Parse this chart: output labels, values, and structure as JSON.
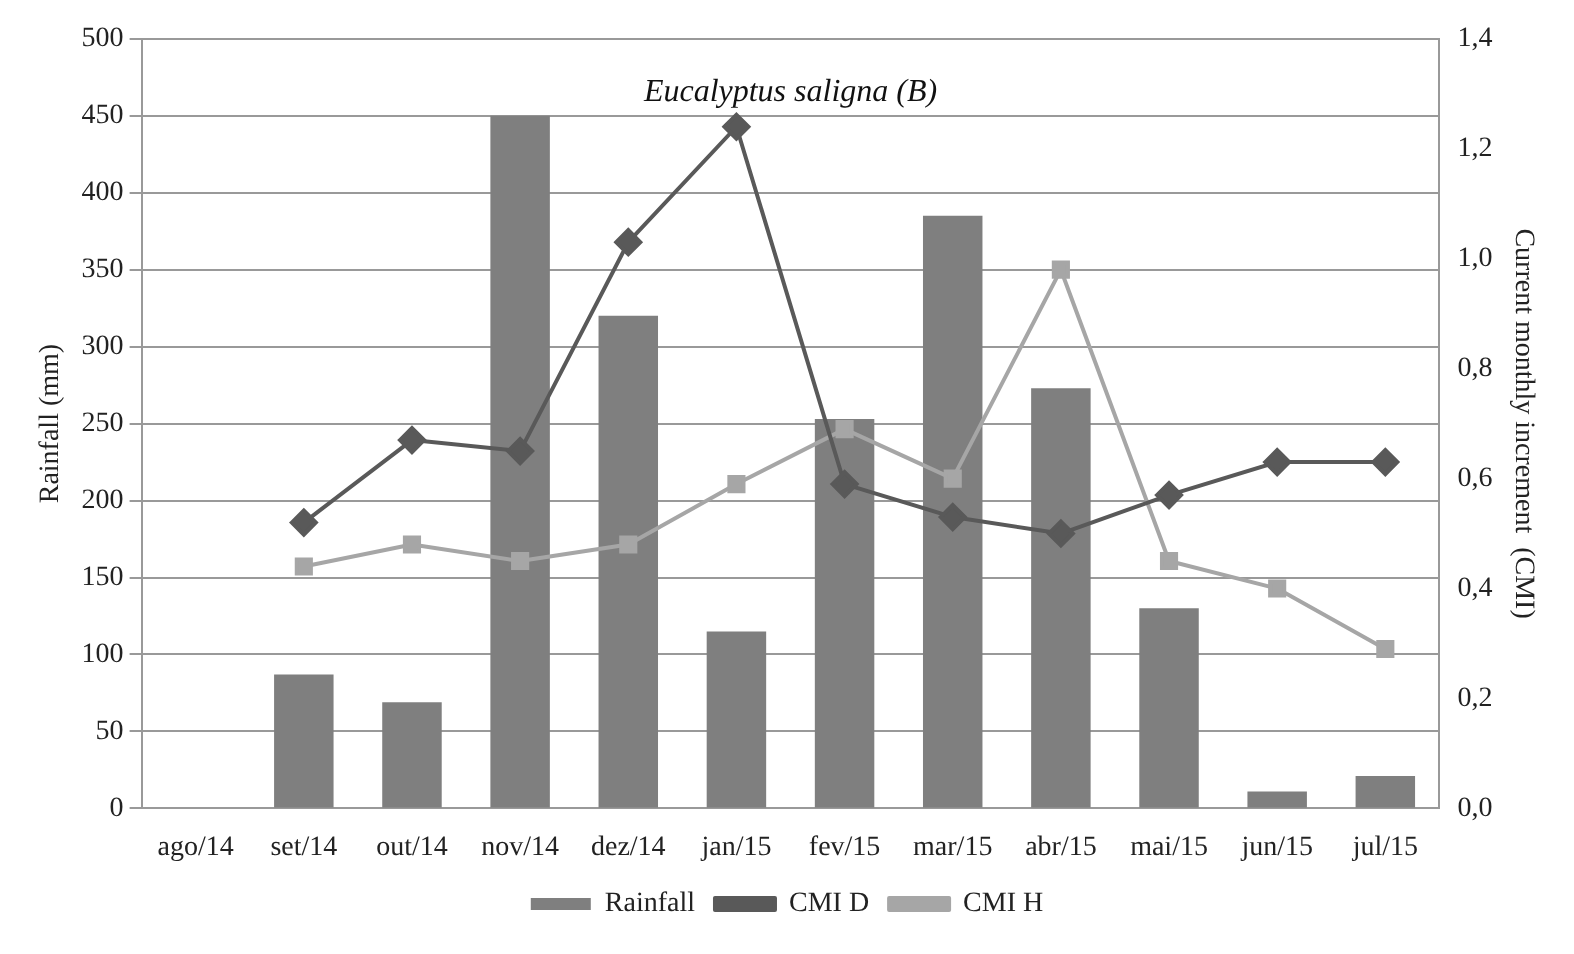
{
  "chart_data": {
    "type": "bar",
    "title": "Eucalyptus saligna (B)",
    "ylabel": "Rainfall (mm)",
    "y2label": "Current monthly increment  (CMI)",
    "categories": [
      "ago/14",
      "set/14",
      "out/14",
      "nov/14",
      "dez/14",
      "jan/15",
      "fev/15",
      "mar/15",
      "abr/15",
      "mai/15",
      "jun/15",
      "jul/15"
    ],
    "series": [
      {
        "name": "Rainfall",
        "color": "#7f7f7f",
        "values": [
          null,
          87,
          69,
          450,
          320,
          115,
          253,
          385,
          273,
          130,
          11,
          21
        ]
      },
      {
        "name": "CMI D",
        "type": "line",
        "axis": "y2",
        "marker": "diamond",
        "color": "#595959",
        "values": [
          null,
          0.52,
          0.67,
          0.65,
          1.03,
          1.24,
          0.59,
          0.53,
          0.5,
          0.57,
          0.63,
          0.63
        ]
      },
      {
        "name": "CMI H",
        "type": "line",
        "axis": "y2",
        "marker": "square",
        "color": "#a6a6a6",
        "values": [
          null,
          0.44,
          0.48,
          0.45,
          0.48,
          0.59,
          0.69,
          0.6,
          0.98,
          0.45,
          0.4,
          0.29
        ]
      }
    ],
    "ylim": [
      0,
      500
    ],
    "yticks": [
      0,
      50,
      100,
      150,
      200,
      250,
      300,
      350,
      400,
      450,
      500
    ],
    "y2lim": [
      0,
      1.4
    ],
    "y2ticks": [
      {
        "value": 0,
        "label": "0,0"
      },
      {
        "value": 0.2,
        "label": "0,2"
      },
      {
        "value": 0.4,
        "label": "0,4"
      },
      {
        "value": 0.6,
        "label": "0,6"
      },
      {
        "value": 0.8,
        "label": "0,8"
      },
      {
        "value": 1.0,
        "label": "1,0"
      },
      {
        "value": 1.2,
        "label": "1,2"
      },
      {
        "value": 1.4,
        "label": "1,4"
      }
    ],
    "grid": "y",
    "legend": "bottom"
  }
}
